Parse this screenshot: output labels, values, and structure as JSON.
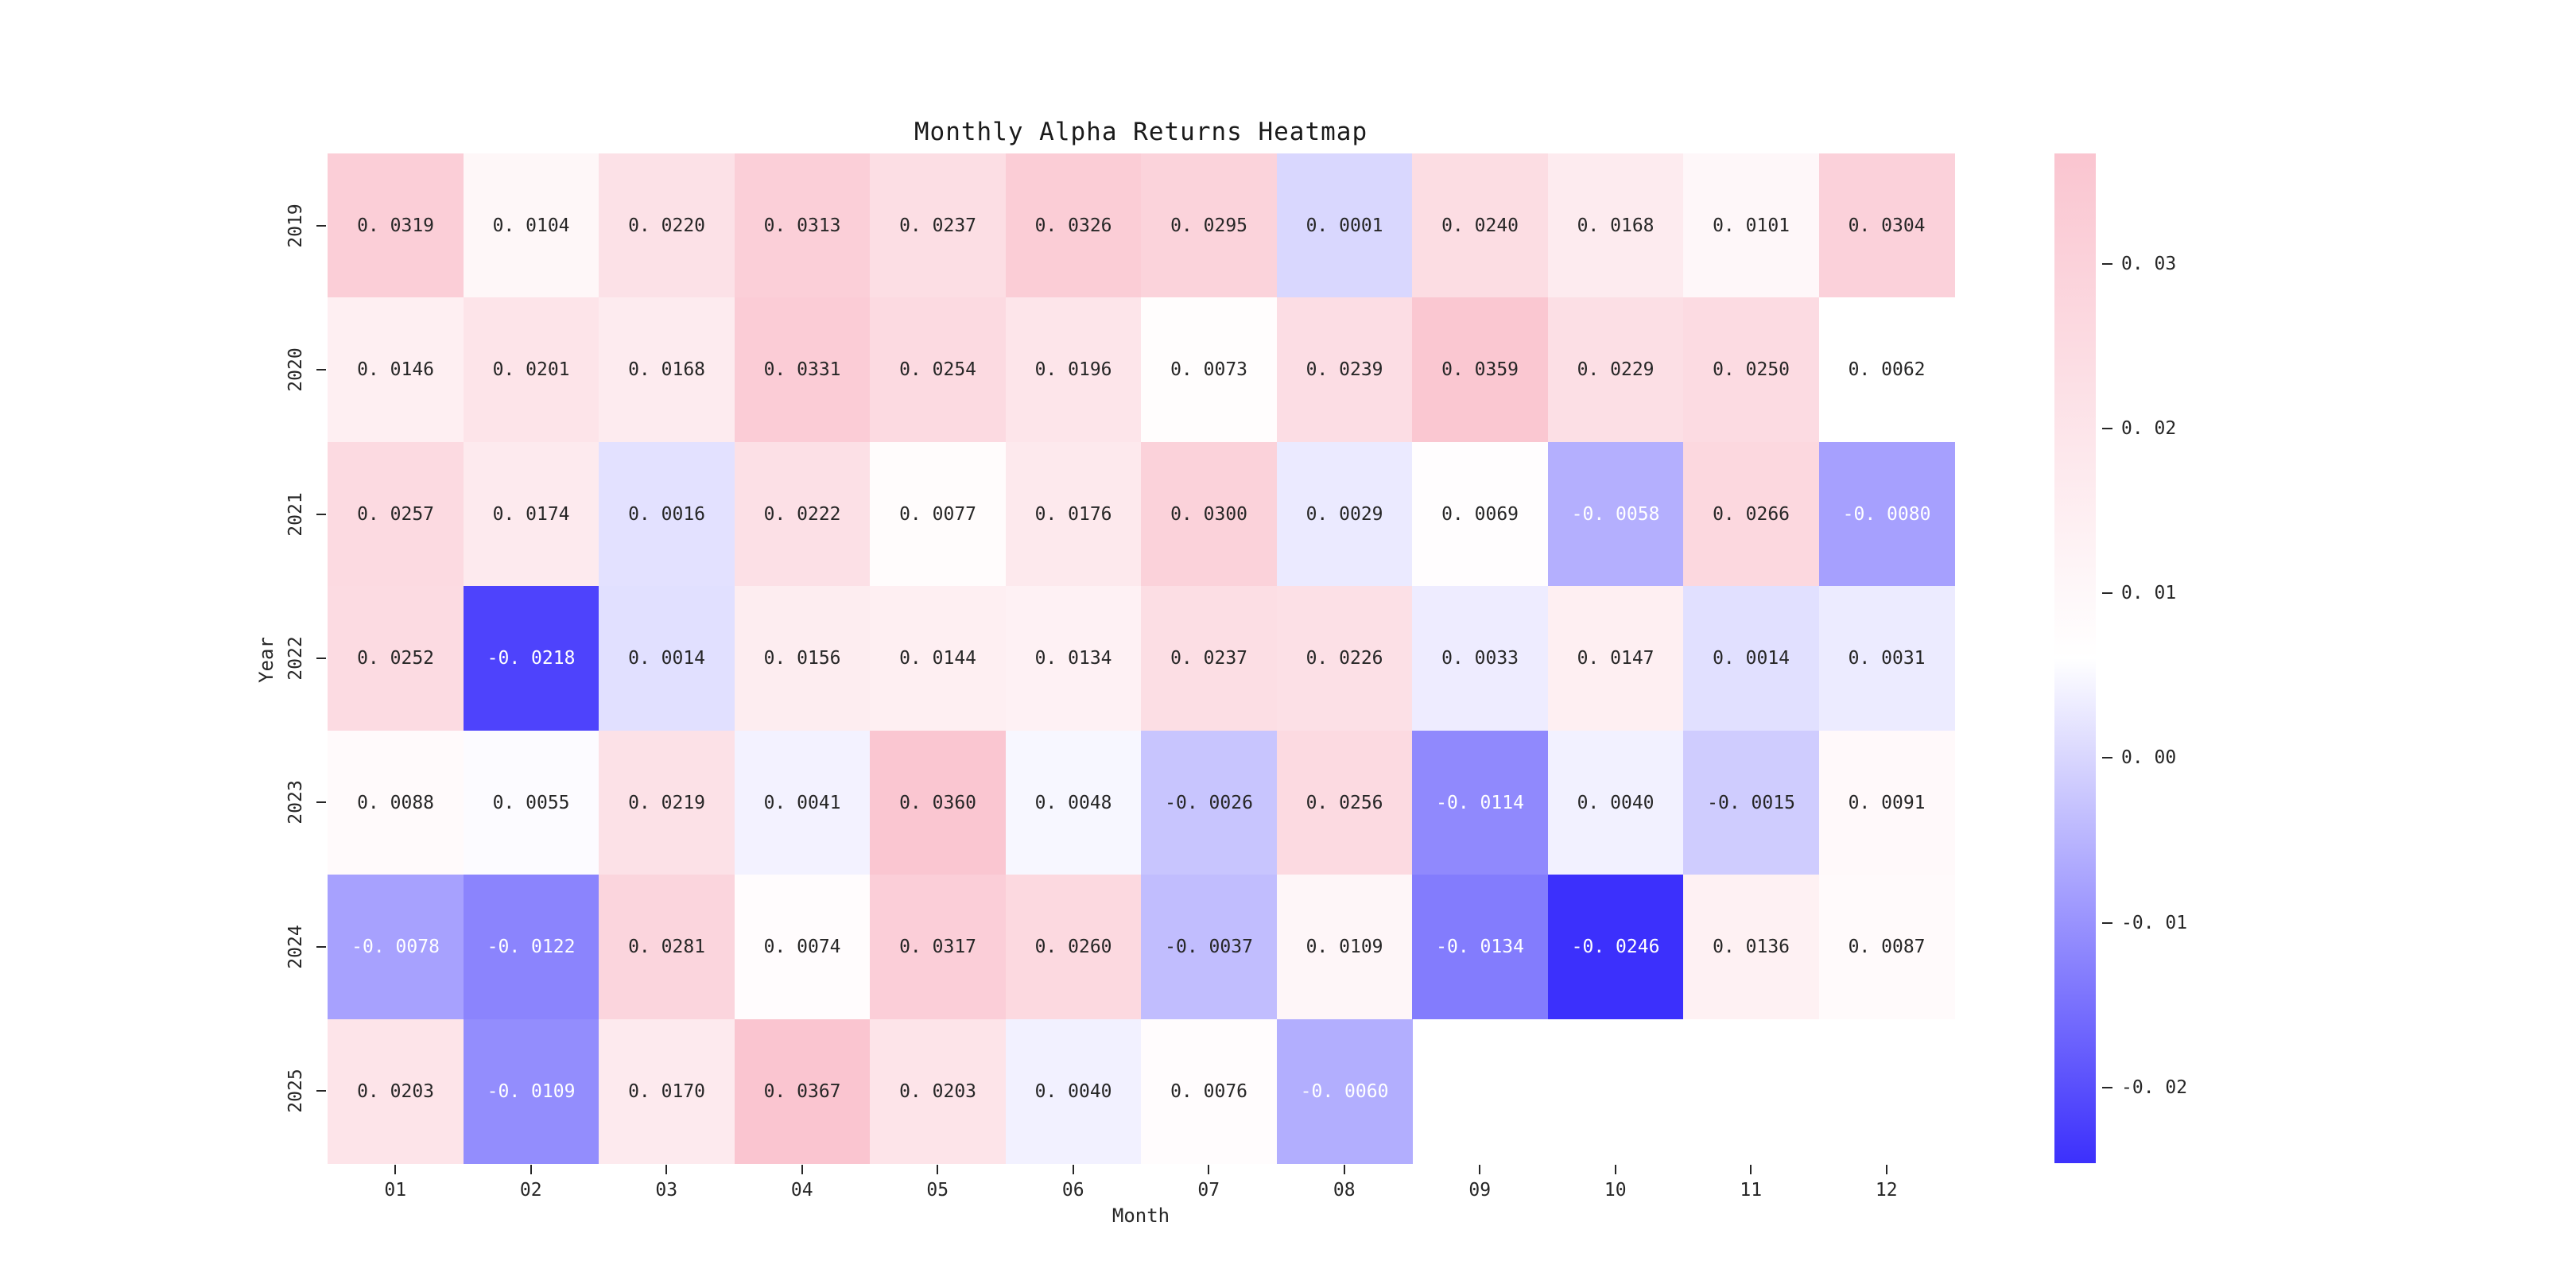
{
  "chart_data": {
    "type": "heatmap",
    "title": "Monthly Alpha Returns Heatmap",
    "xlabel": "Month",
    "ylabel": "Year",
    "x_categories": [
      "01",
      "02",
      "03",
      "04",
      "05",
      "06",
      "07",
      "08",
      "09",
      "10",
      "11",
      "12"
    ],
    "y_categories": [
      "2019",
      "2020",
      "2021",
      "2022",
      "2023",
      "2024",
      "2025"
    ],
    "rows": [
      {
        "year": "2019",
        "values": [
          0.0319,
          0.0104,
          0.022,
          0.0313,
          0.0237,
          0.0326,
          0.0295,
          0.0001,
          0.024,
          0.0168,
          0.0101,
          0.0304
        ]
      },
      {
        "year": "2020",
        "values": [
          0.0146,
          0.0201,
          0.0168,
          0.0331,
          0.0254,
          0.0196,
          0.0073,
          0.0239,
          0.0359,
          0.0229,
          0.025,
          0.0062
        ]
      },
      {
        "year": "2021",
        "values": [
          0.0257,
          0.0174,
          0.0016,
          0.0222,
          0.0077,
          0.0176,
          0.03,
          0.0029,
          0.0069,
          -0.0058,
          0.0266,
          -0.008
        ]
      },
      {
        "year": "2022",
        "values": [
          0.0252,
          -0.0218,
          0.0014,
          0.0156,
          0.0144,
          0.0134,
          0.0237,
          0.0226,
          0.0033,
          0.0147,
          0.0014,
          0.0031
        ]
      },
      {
        "year": "2023",
        "values": [
          0.0088,
          0.0055,
          0.0219,
          0.0041,
          0.036,
          0.0048,
          -0.0026,
          0.0256,
          -0.0114,
          0.004,
          -0.0015,
          0.0091
        ]
      },
      {
        "year": "2024",
        "values": [
          -0.0078,
          -0.0122,
          0.0281,
          0.0074,
          0.0317,
          0.026,
          -0.0037,
          0.0109,
          -0.0134,
          -0.0246,
          0.0136,
          0.0087
        ]
      },
      {
        "year": "2025",
        "values": [
          0.0203,
          -0.0109,
          0.017,
          0.0367,
          0.0203,
          0.004,
          0.0076,
          -0.006,
          null,
          null,
          null,
          null
        ]
      }
    ],
    "value_decimals": 4,
    "colorbar": {
      "ticks": [
        0.03,
        0.02,
        0.01,
        0.0,
        -0.01,
        -0.02
      ],
      "tick_decimals": 2,
      "vmin": -0.0246,
      "vmax": 0.0367,
      "color_max": "#fac5d0",
      "color_mid": "#ffffff",
      "color_min": "#3c30fc"
    },
    "text_color_dark": "#262626",
    "text_color_light": "#ffffff",
    "white_text_below": -0.005,
    "grid": false,
    "legend_position": "colorbar-right"
  }
}
